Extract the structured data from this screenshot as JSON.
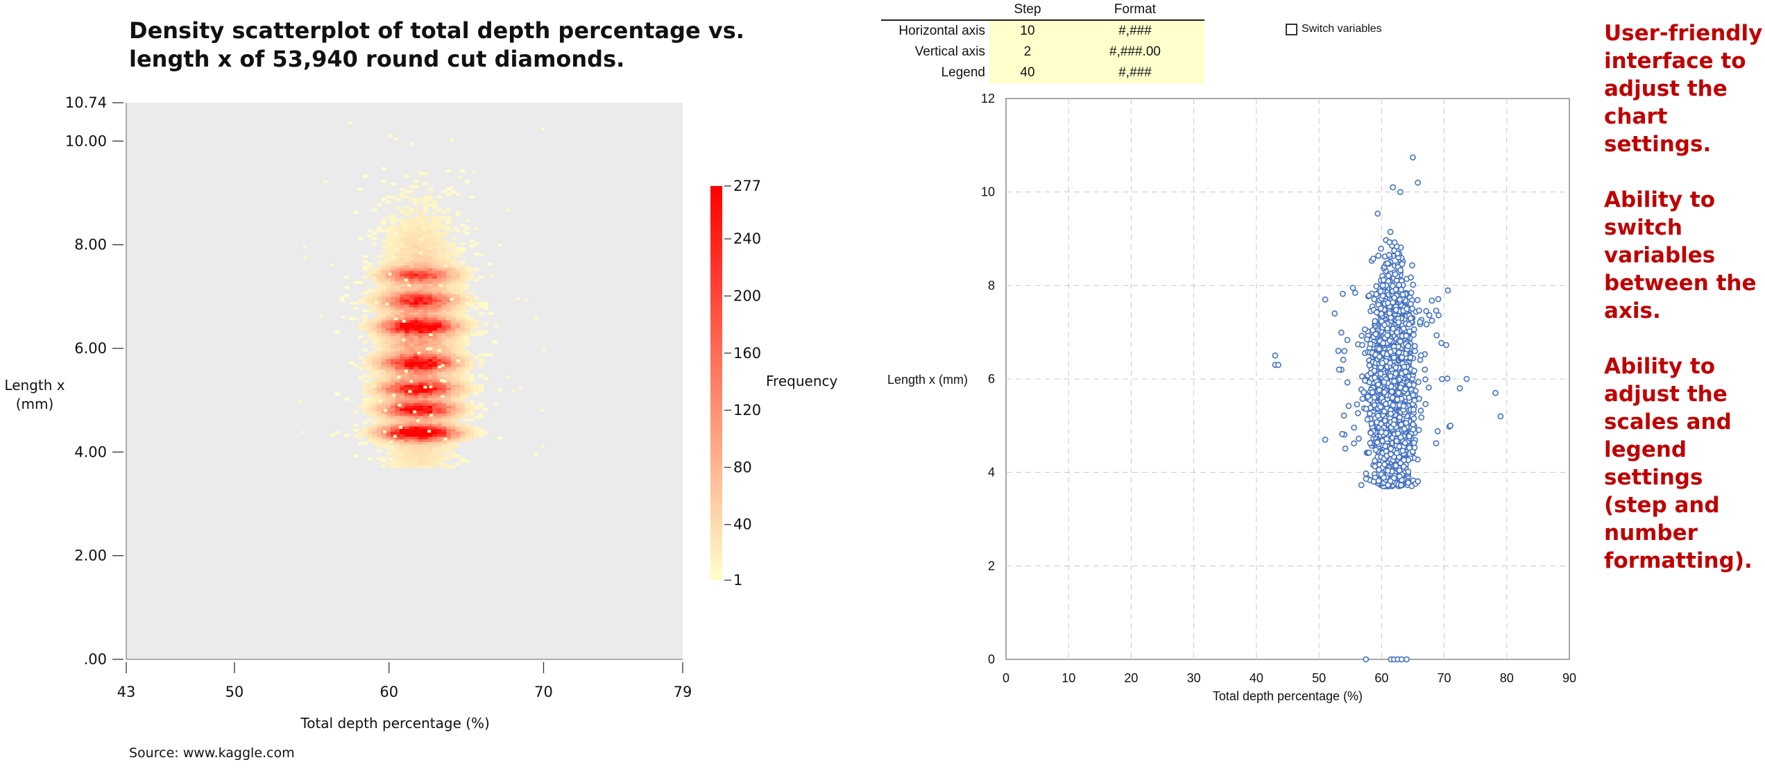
{
  "left_chart": {
    "title_line1": "Density scatterplot of total depth percentage vs.",
    "title_line2": "length x of 53,940 round cut diamonds.",
    "source": "Source: www.kaggle.com"
  },
  "controls": {
    "header_step": "Step",
    "header_format": "Format",
    "rows": [
      {
        "label": "Horizontal axis",
        "step": "10",
        "format": "#,###"
      },
      {
        "label": "Vertical axis",
        "step": "2",
        "format": "#,###.00"
      },
      {
        "label": "Legend",
        "step": "40",
        "format": "#,###"
      }
    ],
    "switch_label": "Switch variables",
    "switch_checked": false
  },
  "notes": {
    "p1": "User-friendly interface to adjust the chart settings.",
    "p2": "Ability to switch variables between the axis.",
    "p3": "Ability to adjust the scales and legend settings (step and number formatting)."
  },
  "colors": {
    "heat_low": "#ffffcc",
    "heat_high": "#ff0000",
    "plot_bg": "#ebebeb",
    "marker": "#4472c4",
    "note": "#c00000"
  },
  "chart_data": [
    {
      "type": "heatmap",
      "title": "Density scatterplot of total depth percentage vs. length x of 53,940 round cut diamonds.",
      "xlabel": "Total depth percentage (%)",
      "ylabel": "Length x (mm)",
      "xlim": [
        43,
        79
      ],
      "ylim": [
        0,
        10.74
      ],
      "x_ticks": [
        "43",
        "50",
        "60",
        "70",
        "79"
      ],
      "y_ticks": [
        ".00",
        "2.00",
        "4.00",
        "6.00",
        "8.00",
        "10.00",
        "10.74"
      ],
      "legend_title": "Frequency",
      "legend_range": [
        1,
        277
      ],
      "legend_ticks": [
        "1",
        "40",
        "80",
        "120",
        "160",
        "200",
        "240",
        "277"
      ],
      "legend_placement": "right",
      "density": {
        "center_x": 61.8,
        "std_x": 1.43,
        "x_range": [
          55,
          67
        ],
        "y_range": [
          3.7,
          9.5
        ],
        "peaks_y": [
          4.35,
          4.8,
          5.2,
          5.7,
          6.4,
          6.9,
          7.4
        ],
        "peak_values": [
          277,
          180,
          170,
          180,
          210,
          140,
          120
        ]
      }
    },
    {
      "type": "scatter",
      "xlabel": "Total depth percentage (%)",
      "ylabel": "Length x (mm)",
      "xlim": [
        0,
        90
      ],
      "ylim": [
        0,
        12
      ],
      "x_ticks": [
        "0",
        "10",
        "20",
        "30",
        "40",
        "50",
        "60",
        "70",
        "80",
        "90"
      ],
      "y_ticks": [
        "0",
        "2",
        "4",
        "6",
        "8",
        "10",
        "12"
      ],
      "grid": true,
      "n_points": 53940,
      "bulk": {
        "x_range": [
          56,
          68
        ],
        "y_range": [
          3.7,
          9.6
        ]
      },
      "outliers": [
        {
          "x": 43.0,
          "y": 6.5
        },
        {
          "x": 43.0,
          "y": 6.3
        },
        {
          "x": 43.5,
          "y": 6.3
        },
        {
          "x": 79.0,
          "y": 5.2
        },
        {
          "x": 78.2,
          "y": 5.7
        },
        {
          "x": 73.6,
          "y": 6.0
        },
        {
          "x": 72.5,
          "y": 5.8
        },
        {
          "x": 71.0,
          "y": 5.0
        },
        {
          "x": 51.0,
          "y": 7.7
        },
        {
          "x": 51.0,
          "y": 4.7
        },
        {
          "x": 52.5,
          "y": 7.4
        },
        {
          "x": 53.2,
          "y": 6.2
        },
        {
          "x": 65.0,
          "y": 10.74
        },
        {
          "x": 65.8,
          "y": 10.2
        },
        {
          "x": 63.0,
          "y": 10.0
        },
        {
          "x": 61.8,
          "y": 10.1
        },
        {
          "x": 57.5,
          "y": 0
        },
        {
          "x": 61.5,
          "y": 0
        },
        {
          "x": 62.0,
          "y": 0
        },
        {
          "x": 62.6,
          "y": 0
        },
        {
          "x": 63.2,
          "y": 0
        },
        {
          "x": 64.0,
          "y": 0
        }
      ]
    }
  ]
}
